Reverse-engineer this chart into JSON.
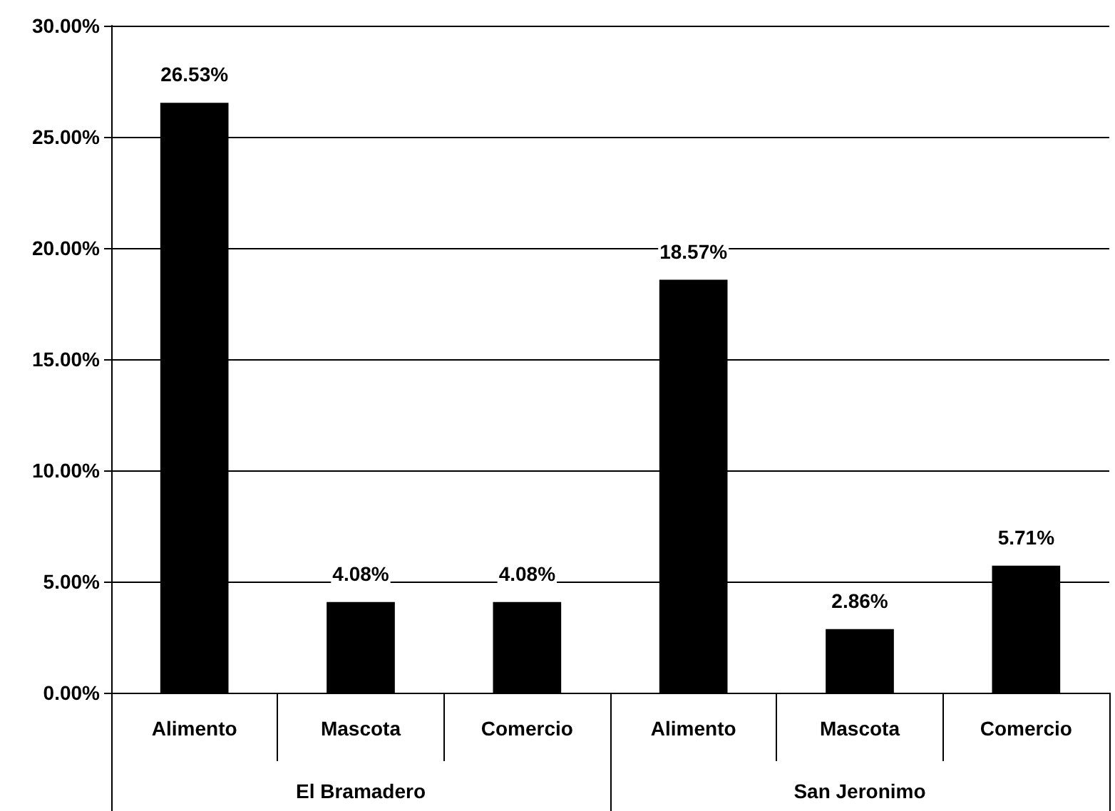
{
  "chart_data": {
    "type": "bar",
    "categories": [
      "Alimento",
      "Mascota",
      "Comercio",
      "Alimento",
      "Mascota",
      "Comercio"
    ],
    "values": [
      26.53,
      4.08,
      4.08,
      18.57,
      2.86,
      5.71
    ],
    "value_labels": [
      "26.53%",
      "4.08%",
      "4.08%",
      "18.57%",
      "2.86%",
      "5.71%"
    ],
    "color": "#000000",
    "ylim": [
      0,
      30
    ],
    "yticks": [
      {
        "value": 0,
        "label": "0.00%"
      },
      {
        "value": 5,
        "label": "5.00%"
      },
      {
        "value": 10,
        "label": "10.00%"
      },
      {
        "value": 15,
        "label": "15.00%"
      },
      {
        "value": 20,
        "label": "20.00%"
      },
      {
        "value": 25,
        "label": "25.00%"
      },
      {
        "value": 30,
        "label": "30.00%"
      }
    ],
    "annotations": [
      "El Bramadero",
      "San Jeronimo"
    ],
    "grid": "y"
  }
}
